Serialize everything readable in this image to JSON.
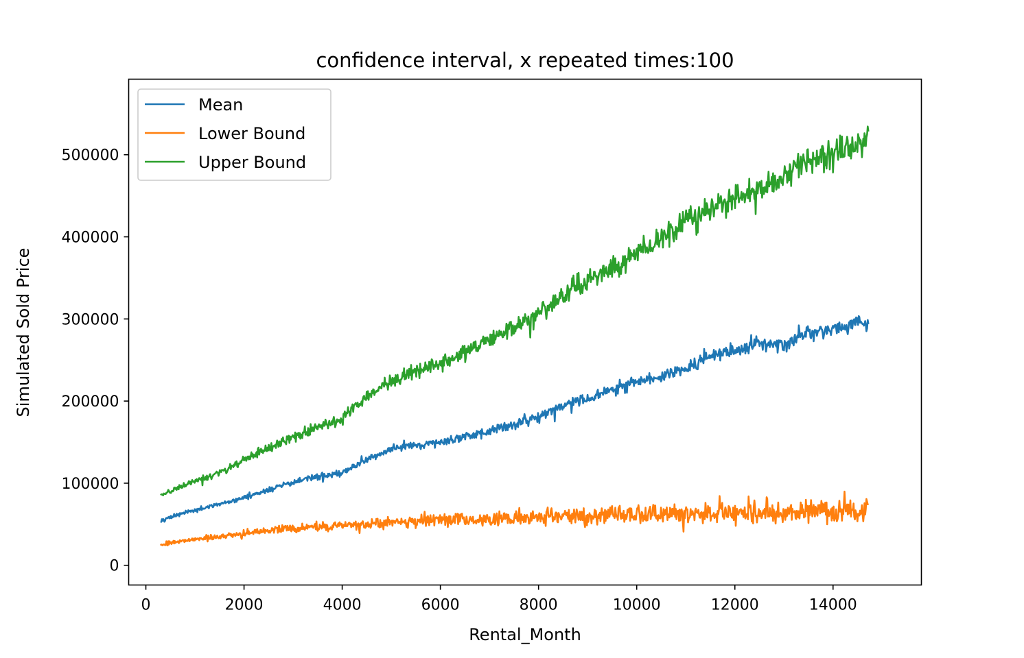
{
  "chart_data": {
    "type": "line",
    "title": "confidence interval, x repeated times:100",
    "xlabel": "Rental_Month",
    "ylabel": "Simulated Sold Price",
    "xlim": [
      -350,
      15800
    ],
    "ylim": [
      -24000,
      592000
    ],
    "xticks": [
      0,
      2000,
      4000,
      6000,
      8000,
      10000,
      12000,
      14000
    ],
    "xtick_labels": [
      "0",
      "2000",
      "4000",
      "6000",
      "8000",
      "10000",
      "12000",
      "14000"
    ],
    "yticks": [
      0,
      100000,
      200000,
      300000,
      400000,
      500000
    ],
    "ytick_labels": [
      "0",
      "100000",
      "200000",
      "300000",
      "400000",
      "500000"
    ],
    "grid": false,
    "legend_position": "top-left",
    "series": [
      {
        "name": "Mean",
        "color": "#1f77b4",
        "x": [
          300,
          800,
          1500,
          2000,
          2500,
          3000,
          3500,
          4000,
          4500,
          5000,
          5500,
          6000,
          6500,
          7000,
          7500,
          8000,
          8500,
          9000,
          9500,
          10000,
          10500,
          11000,
          11500,
          12000,
          12500,
          13000,
          13500,
          14000,
          14500,
          14720
        ],
        "y": [
          55000,
          64000,
          74000,
          82000,
          92000,
          101000,
          108000,
          112000,
          128000,
          142000,
          145000,
          150000,
          157000,
          163000,
          172000,
          181000,
          195000,
          203000,
          213000,
          224000,
          230000,
          240000,
          255000,
          262000,
          270000,
          268000,
          284000,
          288000,
          294000,
          292000
        ],
        "noise": [
          3000,
          14000
        ]
      },
      {
        "name": "Lower Bound",
        "color": "#ff7f0e",
        "x": [
          300,
          800,
          1500,
          2000,
          2500,
          3000,
          3500,
          4000,
          4500,
          5000,
          5500,
          6000,
          6500,
          7000,
          7500,
          8000,
          8500,
          9000,
          9500,
          10000,
          10500,
          11000,
          11500,
          12000,
          12500,
          13000,
          13500,
          14000,
          14500,
          14720
        ],
        "y": [
          25000,
          30000,
          35000,
          39000,
          42000,
          45000,
          47000,
          48000,
          50000,
          52000,
          54000,
          55000,
          56000,
          55000,
          58000,
          58000,
          60000,
          60000,
          61000,
          62000,
          63000,
          63000,
          64000,
          64000,
          65000,
          64000,
          65000,
          66000,
          66000,
          65000
        ],
        "noise": [
          3500,
          22000
        ]
      },
      {
        "name": "Upper Bound",
        "color": "#2ca02c",
        "x": [
          300,
          800,
          1500,
          2000,
          2500,
          3000,
          3500,
          4000,
          4500,
          5000,
          5500,
          6000,
          6500,
          7000,
          7500,
          8000,
          8500,
          9000,
          9500,
          10000,
          10500,
          11000,
          11500,
          12000,
          12500,
          13000,
          13500,
          14000,
          14500,
          14720
        ],
        "y": [
          85000,
          98000,
          113000,
          128000,
          143000,
          155000,
          168000,
          178000,
          208000,
          225000,
          235000,
          247000,
          262000,
          275000,
          289000,
          306000,
          330000,
          347000,
          362000,
          380000,
          397000,
          420000,
          437000,
          445000,
          458000,
          470000,
          493000,
          500000,
          512000,
          525000
        ],
        "noise": [
          4000,
          28000
        ]
      }
    ]
  }
}
